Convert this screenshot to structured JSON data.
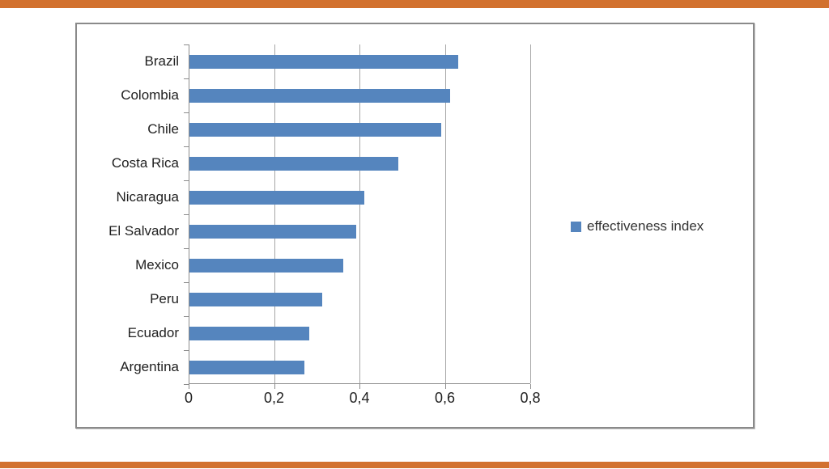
{
  "page": {
    "background": "#ffffff",
    "top_border_color": "#d2712e",
    "bottom_border_color": "#d2712e",
    "frame_border_color": "#8a8a8a"
  },
  "chart_data": {
    "type": "bar",
    "orientation": "horizontal",
    "title": "",
    "categories": [
      "Brazil",
      "Colombia",
      "Chile",
      "Costa Rica",
      "Nicaragua",
      "El Salvador",
      "Mexico",
      "Peru",
      "Ecuador",
      "Argentina"
    ],
    "series": [
      {
        "name": "effectiveness index",
        "values": [
          0.63,
          0.61,
          0.59,
          0.49,
          0.41,
          0.39,
          0.36,
          0.31,
          0.28,
          0.27
        ],
        "color": "#5585be"
      }
    ],
    "xlabel": "",
    "ylabel": "",
    "xlim": [
      0,
      0.8
    ],
    "xticks": [
      0,
      0.2,
      0.4,
      0.6,
      0.8
    ],
    "xtick_labels": [
      "0",
      "0,2",
      "0,4",
      "0,6",
      "0,8"
    ],
    "decimal_separator": ",",
    "grid": true,
    "gridline_color": "#a6a6a6",
    "axis_color": "#8c8c8c",
    "legend": {
      "label": "effectiveness index",
      "position": "right",
      "swatch_color": "#5585be"
    }
  }
}
